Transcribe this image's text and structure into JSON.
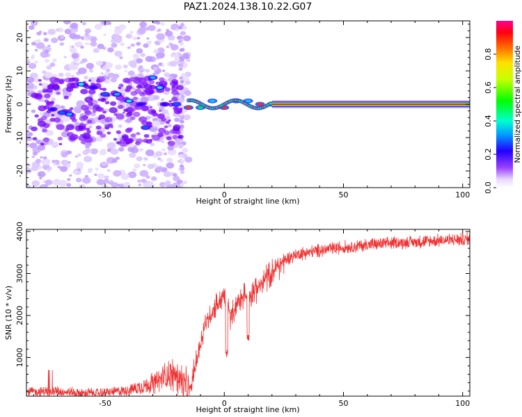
{
  "title": "PAZ1.2024.138.10.22.G07",
  "chart_data": [
    {
      "type": "heatmap",
      "xlabel": "Height of straight line (km)",
      "ylabel": "Frequency (Hz)",
      "xlim": [
        -83,
        103
      ],
      "ylim": [
        -25,
        25
      ],
      "xticks": [
        -50,
        0,
        50,
        100
      ],
      "yticks": [
        -20,
        -10,
        0,
        10,
        20
      ],
      "colorbar": {
        "label": "Normalized spectral amplitude",
        "range": [
          0,
          1
        ],
        "ticks": [
          "0.0",
          "0.2",
          "0.4",
          "0.6",
          "0.8"
        ],
        "colormap": [
          "#ffffff",
          "#e6d8ff",
          "#b070ff",
          "#7a00ff",
          "#0000ff",
          "#00c8ff",
          "#00ff40",
          "#ffff00",
          "#ff7800",
          "#ff0000",
          "#ff1493"
        ]
      },
      "dominant_line": {
        "frequency_hz": 0,
        "x_range": [
          -15,
          103
        ]
      },
      "path": [
        [
          -72,
          -1.5
        ],
        [
          -68,
          -2.5
        ],
        [
          -65,
          -3
        ],
        [
          -60,
          6
        ],
        [
          -55,
          5
        ],
        [
          -50,
          3
        ],
        [
          -45,
          3
        ],
        [
          -40,
          1
        ],
        [
          -35,
          0
        ],
        [
          -33,
          -7
        ],
        [
          -30,
          8
        ],
        [
          -27,
          5
        ],
        [
          -25,
          0
        ],
        [
          -20,
          0
        ],
        [
          -15,
          -1
        ],
        [
          -10,
          -1
        ],
        [
          -5,
          1
        ],
        [
          0,
          -1
        ],
        [
          5,
          1
        ],
        [
          10,
          1
        ],
        [
          15,
          0
        ],
        [
          20,
          0
        ]
      ],
      "scatter": {
        "x_range": [
          -83,
          -15
        ],
        "y_range": [
          -25,
          25
        ],
        "stripe_x": -18
      }
    },
    {
      "type": "line",
      "xlabel": "Height of straight line (km)",
      "ylabel": "SNR (10 * v/v)",
      "xlim": [
        -83,
        103
      ],
      "ylim": [
        80,
        4050
      ],
      "xticks": [
        -50,
        0,
        50,
        100
      ],
      "yticks": [
        1000,
        2000,
        3000,
        4000
      ],
      "color": "#ee3333",
      "trend": [
        [
          -83,
          180
        ],
        [
          -70,
          200
        ],
        [
          -60,
          150
        ],
        [
          -50,
          160
        ],
        [
          -40,
          230
        ],
        [
          -30,
          380
        ],
        [
          -22,
          620
        ],
        [
          -18,
          480
        ],
        [
          -15,
          200
        ],
        [
          -12,
          800
        ],
        [
          -8,
          1800
        ],
        [
          -4,
          2200
        ],
        [
          0,
          2500
        ],
        [
          3,
          1950
        ],
        [
          6,
          2400
        ],
        [
          10,
          2500
        ],
        [
          15,
          2700
        ],
        [
          20,
          3050
        ],
        [
          25,
          3300
        ],
        [
          30,
          3450
        ],
        [
          40,
          3550
        ],
        [
          50,
          3620
        ],
        [
          60,
          3680
        ],
        [
          70,
          3720
        ],
        [
          80,
          3750
        ],
        [
          90,
          3780
        ],
        [
          103,
          3820
        ]
      ],
      "dips": [
        [
          1,
          1000
        ],
        [
          10,
          1400
        ],
        [
          -14,
          180
        ]
      ]
    }
  ]
}
